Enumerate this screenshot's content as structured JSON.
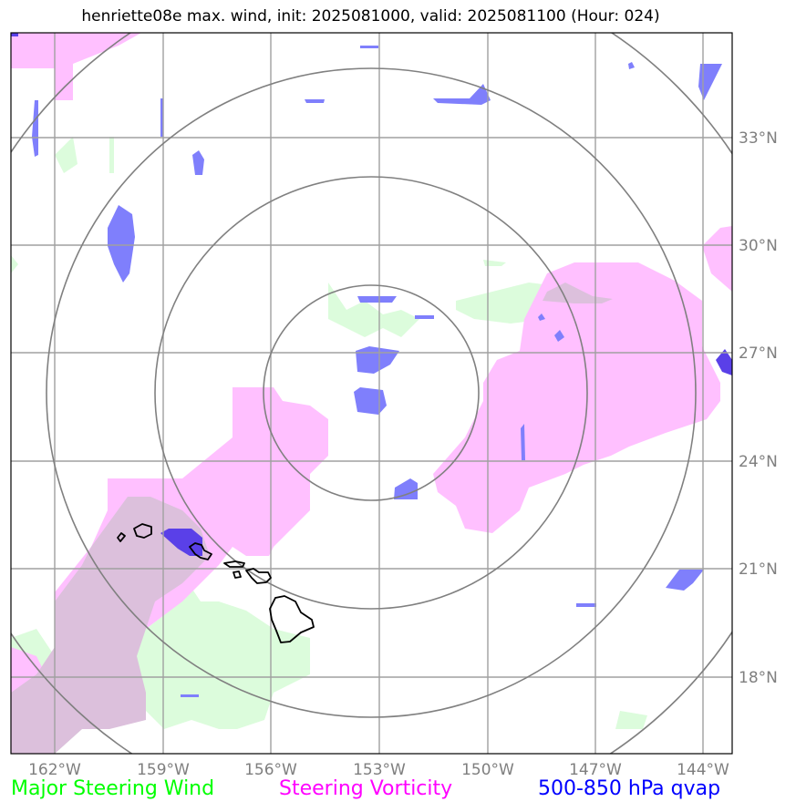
{
  "title": "henriette08e max. wind, init: 2025081000, valid: 2025081100 (Hour: 024)",
  "map": {
    "longitude_labels": [
      "162°W",
      "159°W",
      "156°W",
      "153°W",
      "150°W",
      "147°W",
      "144°W"
    ],
    "latitude_labels": [
      "33°N",
      "30°N",
      "27°N",
      "24°N",
      "21°N",
      "18°N"
    ],
    "gridline_color": "#a0a0a0",
    "range_ring_color": "#808080",
    "range_ring_count": 4,
    "center": "153°W, 26°N"
  },
  "legend": [
    {
      "label": "Major Steering Wind",
      "color": "#00ff00"
    },
    {
      "label": "Steering Vorticity",
      "color": "#ff00ff"
    },
    {
      "label": "500-850 hPa qvap",
      "color": "#0000ff"
    }
  ],
  "fill_colors": {
    "wind": "#dcfcdc",
    "vorticity": "#ffc0ff",
    "overlap": "#dcc0dc",
    "qvap": "#7f7ffc",
    "qvap_dark": "#5a40e8"
  },
  "icons": {
    "coastline": "hawaiian-islands-outline"
  }
}
